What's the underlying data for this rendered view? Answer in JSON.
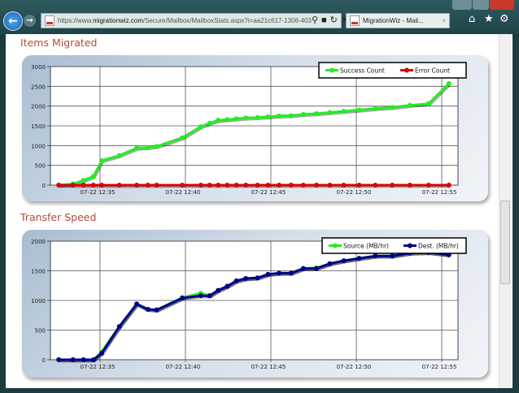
{
  "browser": {
    "url_prefix": "https://www.",
    "url_domain": "migrationwiz.com",
    "url_rest": "/Secure/Mailbox/MailboxStats.aspx?i=aa21c617-1306-403",
    "tab_title": "MigrationWiz - Mail...",
    "icons": [
      "back-icon",
      "forward-icon",
      "search-icon",
      "lock-icon",
      "refresh-icon",
      "close-icon",
      "home-icon",
      "star-icon",
      "gear-icon"
    ]
  },
  "sections": {
    "items_title": "Items Migrated",
    "speed_title": "Transfer Speed"
  },
  "chart_data": [
    {
      "type": "line",
      "title": "Items Migrated",
      "xlabel": "",
      "ylabel": "",
      "x_ticks": [
        "07-22 12:35",
        "07-22 12:40",
        "07-22 12:45",
        "07-22 12:50",
        "07-22 12:55"
      ],
      "x_tick_times": [
        "12:35:00",
        "12:40:00",
        "12:45:00",
        "12:50:00",
        "12:55:00"
      ],
      "xlim": [
        "12:32:06",
        "12:55:57"
      ],
      "y_ticks": [
        0,
        500,
        1000,
        1500,
        2000,
        2500,
        3000
      ],
      "ylim": [
        0,
        3000
      ],
      "grid": true,
      "legend": "top-right",
      "x": [
        "12:32:35",
        "12:33:25",
        "12:34:02",
        "12:34:37",
        "12:35:06",
        "12:36:08",
        "12:37:09",
        "12:37:48",
        "12:38:19",
        "12:39:49",
        "12:40:54",
        "12:41:25",
        "12:41:55",
        "12:42:27",
        "12:42:59",
        "12:43:32",
        "12:44:13",
        "12:44:50",
        "12:45:29",
        "12:46:11",
        "12:46:54",
        "12:47:40",
        "12:48:27",
        "12:49:16",
        "12:50:10",
        "12:51:07",
        "12:52:06",
        "12:53:08",
        "12:54:14",
        "12:55:25"
      ],
      "series": [
        {
          "name": "Success Count",
          "color": "#22ee22",
          "values": [
            0,
            30,
            120,
            220,
            620,
            750,
            940,
            950,
            980,
            1200,
            1480,
            1570,
            1640,
            1660,
            1680,
            1700,
            1710,
            1730,
            1750,
            1760,
            1790,
            1810,
            1840,
            1870,
            1900,
            1940,
            1970,
            2020,
            2060,
            2570
          ]
        },
        {
          "name": "Error Count",
          "color": "#dd0000",
          "values": [
            0,
            0,
            0,
            0,
            0,
            0,
            0,
            0,
            0,
            0,
            0,
            0,
            0,
            0,
            0,
            0,
            0,
            0,
            0,
            0,
            0,
            0,
            0,
            0,
            0,
            0,
            0,
            0,
            0,
            0
          ]
        }
      ]
    },
    {
      "type": "line",
      "title": "Transfer Speed",
      "xlabel": "",
      "ylabel": "",
      "x_ticks": [
        "07-22 12:35",
        "07-22 12:40",
        "07-22 12:45",
        "07-22 12:50",
        "07-22 12:55"
      ],
      "x_tick_times": [
        "12:35:00",
        "12:40:00",
        "12:45:00",
        "12:50:00",
        "12:55:00"
      ],
      "xlim": [
        "12:32:06",
        "12:55:57"
      ],
      "y_ticks": [
        0,
        500,
        1000,
        1500,
        2000
      ],
      "ylim": [
        0,
        2000
      ],
      "grid": true,
      "legend": "top-right",
      "x": [
        "12:32:35",
        "12:33:25",
        "12:34:02",
        "12:34:37",
        "12:35:06",
        "12:36:08",
        "12:37:09",
        "12:37:48",
        "12:38:19",
        "12:39:49",
        "12:40:54",
        "12:41:25",
        "12:41:55",
        "12:42:27",
        "12:42:59",
        "12:43:32",
        "12:44:13",
        "12:44:50",
        "12:45:29",
        "12:46:11",
        "12:46:54",
        "12:47:40",
        "12:48:27",
        "12:49:16",
        "12:50:10",
        "12:51:07",
        "12:52:06",
        "12:53:08",
        "12:54:14",
        "12:55:25"
      ],
      "series": [
        {
          "name": "Source (MB/hr)",
          "color": "#22ee22",
          "values": [
            0,
            0,
            0,
            0,
            130,
            560,
            940,
            850,
            840,
            1050,
            1120,
            1080,
            1170,
            1240,
            1330,
            1370,
            1380,
            1440,
            1460,
            1460,
            1540,
            1550,
            1620,
            1670,
            1710,
            1750,
            1750,
            1800,
            1810,
            1770
          ]
        },
        {
          "name": "Dest. (MB/hr)",
          "color": "#00008b",
          "values": [
            0,
            0,
            0,
            0,
            110,
            560,
            940,
            850,
            840,
            1040,
            1080,
            1080,
            1170,
            1240,
            1330,
            1370,
            1380,
            1440,
            1460,
            1460,
            1540,
            1540,
            1620,
            1670,
            1710,
            1750,
            1750,
            1800,
            1810,
            1770
          ]
        }
      ]
    }
  ]
}
